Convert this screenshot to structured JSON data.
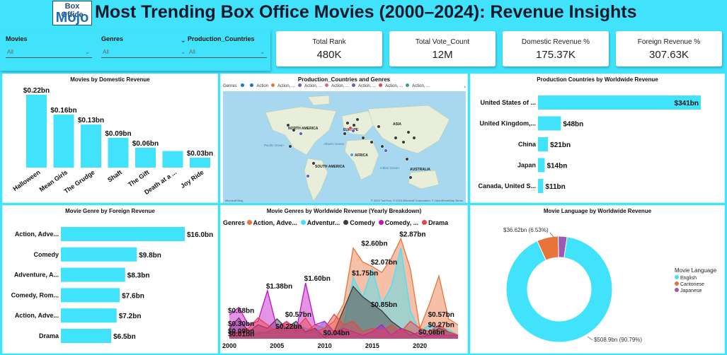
{
  "header": {
    "logo_line1": "Box Office",
    "logo_line2": "Mojo",
    "title": "Most Trending Box Office Movies (2000–2024): Revenue Insights"
  },
  "slicers": [
    {
      "label": "Movies",
      "value": "All"
    },
    {
      "label": "Genres",
      "value": "All"
    },
    {
      "label": "Production_Countries",
      "value": "All"
    }
  ],
  "kpis": [
    {
      "label": "Total Rank",
      "value": "480K"
    },
    {
      "label": "Total Vote_Count",
      "value": "12M"
    },
    {
      "label": "Domestic Revenue %",
      "value": "175.37K"
    },
    {
      "label": "Foreign Revenue %",
      "value": "307.63K"
    }
  ],
  "colors": {
    "bar": "#41e2fb",
    "orange": "#e8743b",
    "cyan": "#41e2fb",
    "dark": "#3b3b3b",
    "purple": "#c012c4",
    "red": "#e8434a",
    "pink": "#e25f9e",
    "blue": "#1f6fd1",
    "teal": "#3aa08f"
  },
  "map": {
    "title": "Production_Countries and Genres",
    "legend_label": "Genres",
    "legend": [
      {
        "name": "",
        "color": "#1f6fd1"
      },
      {
        "name": "Action",
        "color": "#1f6fd1"
      },
      {
        "name": "Action, ...",
        "color": "#e8743b"
      },
      {
        "name": "Action, ...",
        "color": "#6a5acd"
      },
      {
        "name": "Action, ...",
        "color": "#e25f9e"
      },
      {
        "name": "Action, ...",
        "color": "#6a5acd"
      },
      {
        "name": "Action, ...",
        "color": "#e8434a"
      },
      {
        "name": "Action, ...",
        "color": "#3aa08f"
      }
    ],
    "regions": [
      "NORTH AMERICA",
      "EUROPE",
      "ASIA",
      "AFRICA",
      "SOUTH AMERICA",
      "AUSTRALIA"
    ],
    "oceans": [
      "Pacific Ocean",
      "Atlantic Ocean",
      "Indian Ocean"
    ],
    "credit": "© 2024 TomTom, © 2024 Microsoft Corporation, © OpenStreetMap  Terms",
    "provider": "Microsoft Bing"
  },
  "chart_data": [
    {
      "type": "bar",
      "title": "Movies by Domestic Revenue",
      "categories": [
        "Halloween",
        "Mean Girls",
        "The Grudge",
        "Shaft",
        "The Gift",
        "Death at a ...",
        "Joy Ride"
      ],
      "values": [
        0.22,
        0.16,
        0.13,
        0.09,
        0.06,
        0.05,
        0.03
      ],
      "data_labels": [
        "$0.22bn",
        "$0.16bn",
        "$0.13bn",
        "$0.09bn",
        "$0.06bn",
        "",
        "$0.03bn"
      ],
      "unit": "bn"
    },
    {
      "type": "bar",
      "orientation": "horizontal",
      "title": "Production Countries by Worldwide Revenue",
      "categories": [
        "United States of ...",
        "United Kingdom,...",
        "China",
        "Japan",
        "Canada, United S..."
      ],
      "values": [
        341,
        48,
        21,
        14,
        11
      ],
      "data_labels": [
        "$341bn",
        "$48bn",
        "$21bn",
        "$14bn",
        "$11bn"
      ],
      "unit": "bn"
    },
    {
      "type": "bar",
      "orientation": "horizontal",
      "title": "Movie Genre by Foreign Revenue",
      "categories": [
        "Action, Adve...",
        "Comedy",
        "Adventure, A...",
        "Comedy, Rom...",
        "Action, Adve...",
        "Drama"
      ],
      "values": [
        16.0,
        9.8,
        8.3,
        7.6,
        7.2,
        6.5
      ],
      "data_labels": [
        "$16.0bn",
        "$9.8bn",
        "$8.3bn",
        "$7.6bn",
        "$7.2bn",
        "$6.5bn"
      ],
      "unit": "bn"
    },
    {
      "type": "area",
      "title": "Movie Genres by Worldwide Revenue (Yearly Breakdown)",
      "legend_title": "Genres",
      "x": [
        2000,
        2001,
        2002,
        2003,
        2004,
        2005,
        2006,
        2007,
        2008,
        2009,
        2010,
        2011,
        2012,
        2013,
        2014,
        2015,
        2016,
        2017,
        2018,
        2019,
        2020,
        2021,
        2022,
        2023,
        2024
      ],
      "xticks": [
        2000,
        2005,
        2010,
        2015,
        2020
      ],
      "ylim": [
        0,
        3.0
      ],
      "series": [
        {
          "name": "Action, Adve...",
          "color": "#e8743b",
          "values": [
            0.05,
            0.1,
            0.08,
            0.15,
            0.2,
            0.3,
            0.25,
            0.35,
            0.2,
            0.4,
            0.3,
            0.5,
            1.0,
            2.6,
            2.2,
            2.07,
            1.9,
            2.3,
            2.87,
            2.0,
            0.3,
            1.0,
            1.8,
            0.57,
            0.4
          ]
        },
        {
          "name": "Adventur...",
          "color": "#41e2fb",
          "values": [
            0.01,
            0.05,
            0.1,
            0.2,
            0.15,
            0.22,
            0.3,
            0.4,
            0.3,
            0.2,
            0.5,
            0.1,
            0.4,
            1.75,
            1.2,
            2.0,
            1.0,
            1.5,
            2.6,
            0.8,
            0.2,
            0.4,
            0.3,
            0.27,
            0.1
          ]
        },
        {
          "name": "Comedy",
          "color": "#3b3b3b",
          "values": [
            0.3,
            0.6,
            0.2,
            0.4,
            0.3,
            0.57,
            0.3,
            0.5,
            0.2,
            0.3,
            0.04,
            0.2,
            0.85,
            1.5,
            1.2,
            1.0,
            0.8,
            0.5,
            0.3,
            0.2,
            0.06,
            0.1,
            0.3,
            0.2,
            0.1
          ]
        },
        {
          "name": "Comedy, ...",
          "color": "#c012c4",
          "values": [
            0.68,
            0.9,
            0.4,
            0.5,
            1.38,
            0.3,
            0.5,
            0.2,
            1.6,
            0.4,
            0.5,
            0.2,
            0.3,
            0.2,
            0.1,
            0.2,
            0.4,
            0.1,
            0.3,
            0.1,
            0.2,
            0.1,
            0.1,
            0.1,
            0.1
          ]
        },
        {
          "name": "Drama",
          "color": "#e8434a",
          "values": [
            0.09,
            0.2,
            0.3,
            0.6,
            0.4,
            0.2,
            0.5,
            0.3,
            0.6,
            0.2,
            0.3,
            0.7,
            0.4,
            0.5,
            0.2,
            0.3,
            0.2,
            0.4,
            0.2,
            0.5,
            0.3,
            0.2,
            0.4,
            0.2,
            0.1
          ]
        }
      ],
      "annotations": [
        {
          "x": 2000,
          "y": 0.09,
          "text": "$0.09bn"
        },
        {
          "x": 2000,
          "y": 0.68,
          "text": "$0.68bn"
        },
        {
          "x": 2000,
          "y": 0.3,
          "text": "$0.30bn"
        },
        {
          "x": 2000,
          "y": 0.01,
          "text": "$0.01bn"
        },
        {
          "x": 2004,
          "y": 1.38,
          "text": "$1.38bn"
        },
        {
          "x": 2005,
          "y": 0.22,
          "text": "$0.22bn"
        },
        {
          "x": 2006,
          "y": 0.57,
          "text": "$0.57bn"
        },
        {
          "x": 2008,
          "y": 1.6,
          "text": "$1.60bn"
        },
        {
          "x": 2010,
          "y": 0.04,
          "text": "$0.04bn"
        },
        {
          "x": 2013,
          "y": 1.75,
          "text": "$1.75bn"
        },
        {
          "x": 2014,
          "y": 2.6,
          "text": "$2.60bn"
        },
        {
          "x": 2015,
          "y": 2.07,
          "text": "$2.07bn"
        },
        {
          "x": 2015,
          "y": 0.85,
          "text": "$0.85bn"
        },
        {
          "x": 2018,
          "y": 2.87,
          "text": "$2.87bn"
        },
        {
          "x": 2021,
          "y": 0.57,
          "text": "$0.57bn"
        },
        {
          "x": 2021,
          "y": 0.27,
          "text": "$0.27bn"
        },
        {
          "x": 2020,
          "y": 0.06,
          "text": "$0.06bn"
        }
      ]
    },
    {
      "type": "pie",
      "donut": true,
      "title": "Movie Language by Worldwide Revenue",
      "legend_title": "Movie Language",
      "categories": [
        "English",
        "Cantonese",
        "Japanese"
      ],
      "values": [
        508.9,
        36.62,
        15.0
      ],
      "colors": [
        "#41e2fb",
        "#e8743b",
        "#9b59b6"
      ],
      "data_labels": [
        "$508.9bn (90.79%)",
        "$36.62bn (6.53%)",
        ""
      ]
    }
  ]
}
